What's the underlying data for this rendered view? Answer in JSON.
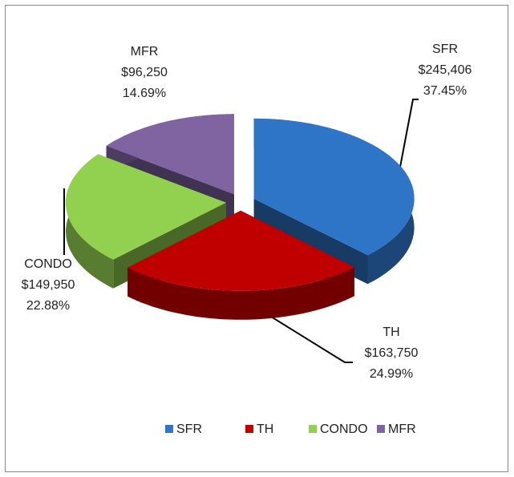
{
  "chart_data": {
    "type": "pie",
    "categories": [
      "SFR",
      "TH",
      "CONDO",
      "MFR"
    ],
    "values": [
      245406,
      163750,
      149950,
      96250
    ],
    "value_labels": [
      "$245,406",
      "$163,750",
      "$149,950",
      "$96,250"
    ],
    "percents": [
      37.45,
      24.99,
      22.88,
      14.69
    ],
    "percent_labels": [
      "37.45%",
      "24.99%",
      "22.88%",
      "14.69%"
    ],
    "colors": [
      "#2e75c8",
      "#c00000",
      "#92d050",
      "#8064a2"
    ],
    "legend": "bottom"
  }
}
